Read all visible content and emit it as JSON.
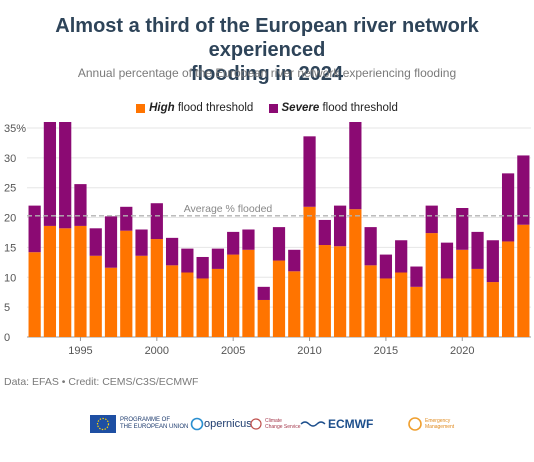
{
  "header": {
    "title_line1": "Almost a third of the European river network experienced",
    "title_line2": "flooding in 2024",
    "subtitle": "Annual percentage of the European river network experiencing flooding"
  },
  "legend": {
    "high_bold": "High",
    "high_rest": " flood threshold",
    "severe_bold": "Severe",
    "severe_rest": " flood threshold"
  },
  "colors": {
    "high": "#ff7400",
    "severe": "#8b0a73",
    "average_line": "#b3b3b3",
    "grid": "#e6e6e6"
  },
  "chart_data": {
    "type": "bar",
    "stacked": true,
    "x": [
      1992,
      1993,
      1994,
      1995,
      1996,
      1997,
      1998,
      1999,
      2000,
      2001,
      2002,
      2003,
      2004,
      2005,
      2006,
      2007,
      2008,
      2009,
      2010,
      2011,
      2012,
      2013,
      2014,
      2015,
      2016,
      2017,
      2018,
      2019,
      2020,
      2021,
      2022,
      2023,
      2024
    ],
    "series": [
      {
        "name": "High flood threshold",
        "values": [
          14.2,
          18.6,
          18.2,
          18.6,
          13.6,
          11.6,
          17.8,
          13.6,
          16.4,
          12.0,
          10.8,
          9.8,
          11.4,
          13.8,
          14.6,
          6.2,
          12.8,
          11.0,
          21.8,
          15.4,
          15.2,
          21.4,
          12.0,
          9.8,
          10.8,
          8.4,
          17.4,
          9.8,
          14.6,
          11.4,
          9.2,
          16.0,
          18.8
        ]
      },
      {
        "name": "Severe flood threshold",
        "values": [
          7.8,
          17.6,
          17.8,
          7.0,
          4.6,
          8.6,
          4.0,
          4.4,
          6.0,
          4.6,
          4.0,
          3.6,
          3.4,
          3.8,
          3.4,
          2.2,
          5.6,
          3.6,
          11.8,
          4.2,
          6.8,
          14.8,
          6.4,
          4.0,
          5.4,
          3.4,
          4.6,
          6.0,
          7.0,
          6.2,
          7.0,
          11.4,
          11.6
        ]
      }
    ],
    "average": 20.3,
    "average_label": "Average % flooded",
    "ylim": [
      0,
      36
    ],
    "yticks": [
      0,
      5,
      10,
      15,
      20,
      25,
      30,
      35
    ],
    "ytick_labels": [
      "0",
      "5",
      "10",
      "15",
      "20",
      "25",
      "30",
      "35%"
    ],
    "xtick_labels": [
      "1995",
      "2000",
      "2005",
      "2010",
      "2015",
      "2020"
    ],
    "xtick_years": [
      1995,
      2000,
      2005,
      2010,
      2015,
      2020
    ],
    "grid": true,
    "legend_position": "top"
  },
  "footer": {
    "source": "Data: EFAS • Credit: CEMS/C3S/ECMWF",
    "logos": {
      "eu_line1": "PROGRAMME OF",
      "eu_line2": "THE EUROPEAN UNION",
      "copernicus": "opernicus",
      "climate_line1": "Climate",
      "climate_line2": "Change Service",
      "ecmwf": "ECMWF",
      "emergency_line1": "Emergency",
      "emergency_line2": "Management"
    }
  }
}
